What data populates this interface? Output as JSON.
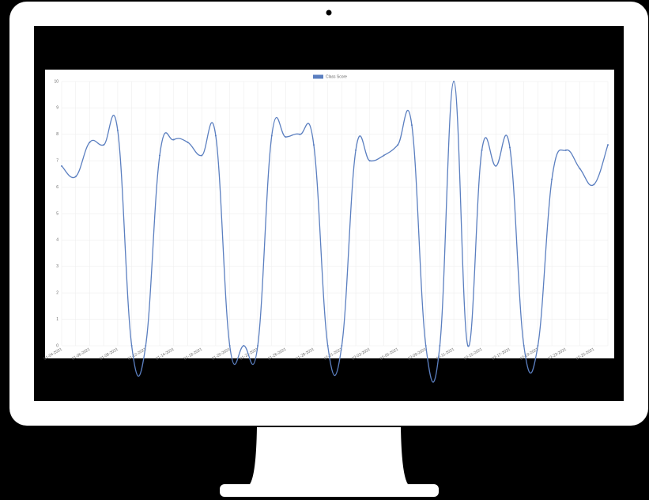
{
  "chart_data": {
    "type": "line",
    "categories": [
      "01-04-2021",
      null,
      "01-06-2021",
      null,
      "01-08-2021",
      null,
      "01-12-2021",
      null,
      "01-14-2021",
      null,
      "01-18-2021",
      null,
      "01-20-2021",
      null,
      "01-22-2021",
      null,
      "01-26-2021",
      null,
      "01-28-2021",
      null,
      "02-01-2021",
      null,
      "02-03-2021",
      null,
      "02-05-2021",
      null,
      "02-09-2021",
      null,
      "02-11-2021",
      null,
      "02-15-2021",
      null,
      "02-17-2021",
      null,
      "02-19-2021",
      null,
      "02-23-2021",
      null,
      "02-25-2021",
      null
    ],
    "series": [
      {
        "name": "Class Score",
        "color": "#5b7fc0",
        "values": [
          6.8,
          6.4,
          7.7,
          7.6,
          8.15,
          0,
          0,
          7.2,
          7.8,
          7.7,
          7.2,
          7.95,
          0,
          0,
          0,
          7.95,
          7.9,
          8.0,
          7.6,
          0,
          0,
          7.4,
          7.0,
          7.2,
          7.6,
          8.35,
          0,
          0,
          10,
          0,
          7.4,
          6.8,
          7.5,
          0,
          0,
          6.3,
          7.4,
          6.7,
          6.1,
          7.6
        ]
      }
    ],
    "ylim": [
      0,
      10
    ],
    "yticks": [
      0,
      1,
      2,
      3,
      4,
      5,
      6,
      7,
      8,
      9,
      10
    ],
    "grid": true
  }
}
